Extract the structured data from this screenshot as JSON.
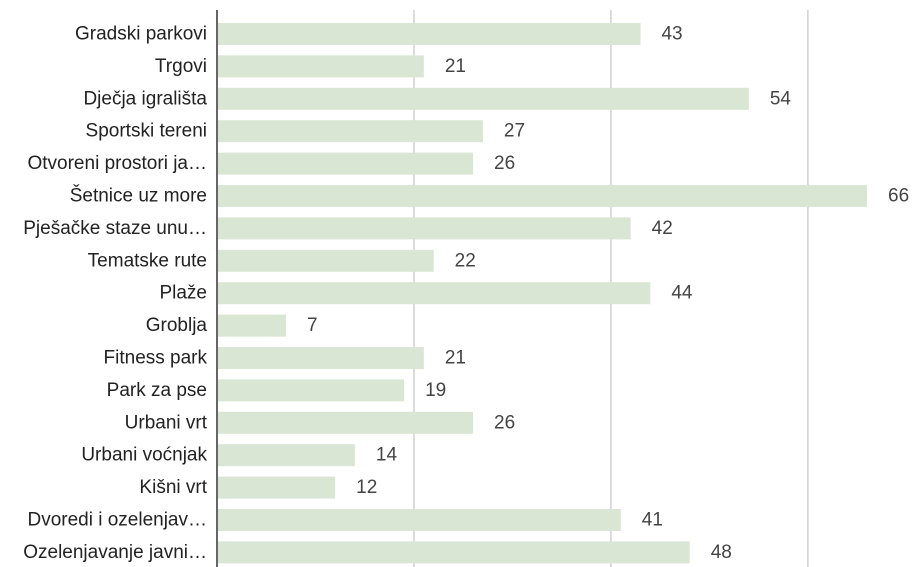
{
  "chart_data": {
    "type": "bar",
    "orientation": "horizontal",
    "categories": [
      "Gradski parkovi",
      "Trgovi",
      "Dječja igrališta",
      "Sportski tereni",
      "Otvoreni prostori ja…",
      "Šetnice uz more",
      "Pješačke staze unu…",
      "Tematske rute",
      "Plaže",
      "Groblja",
      "Fitness park",
      "Park za pse",
      "Urbani vrt",
      "Urbani voćnjak",
      "Kišni vrt",
      "Dvoredi i ozelenjav…",
      "Ozelenjavanje javni…"
    ],
    "values": [
      43,
      21,
      54,
      27,
      26,
      66,
      42,
      22,
      44,
      7,
      21,
      19,
      26,
      14,
      12,
      41,
      48
    ],
    "xlim": [
      0,
      66
    ],
    "grid": true,
    "gridlines": [
      0,
      20,
      40,
      60
    ],
    "bar_color": "#d9e6d3",
    "axis_color": "#333333",
    "grid_color": "#c4c4c4"
  }
}
